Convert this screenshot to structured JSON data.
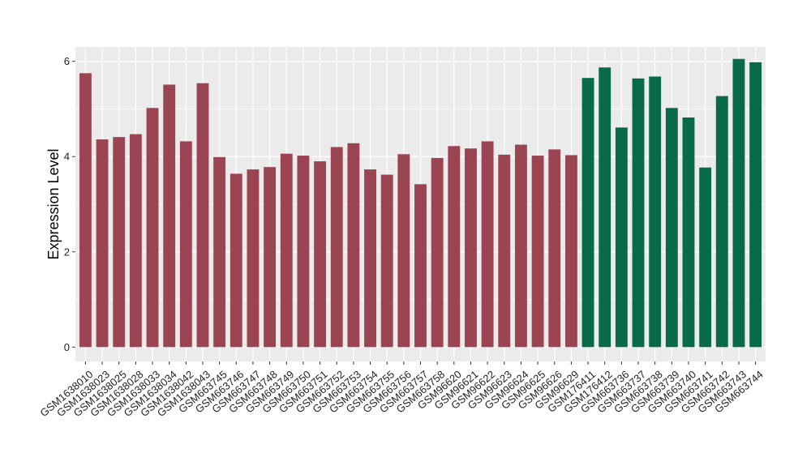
{
  "chart_data": {
    "type": "bar",
    "ylabel": "Expression Level",
    "xlabel": "",
    "ylim": [
      -0.3,
      6.3
    ],
    "yticks": [
      0,
      2,
      4,
      6
    ],
    "grid": true,
    "background": "#EBEBEB",
    "gridline_color": "#FFFFFF",
    "colors": {
      "group_1": "#9B4452",
      "group_2": "#086A46"
    },
    "categories": [
      "GSM1638010",
      "GSM1638023",
      "GSM1638025",
      "GSM1638028",
      "GSM1638033",
      "GSM1638034",
      "GSM1638042",
      "GSM1638043",
      "GSM663745",
      "GSM663746",
      "GSM663747",
      "GSM663748",
      "GSM663749",
      "GSM663750",
      "GSM663751",
      "GSM663752",
      "GSM663753",
      "GSM663754",
      "GSM663755",
      "GSM663756",
      "GSM663757",
      "GSM663758",
      "GSM96620",
      "GSM96621",
      "GSM96622",
      "GSM96623",
      "GSM96624",
      "GSM96625",
      "GSM96626",
      "GSM96629",
      "GSM176411",
      "GSM176412",
      "GSM663736",
      "GSM663737",
      "GSM663738",
      "GSM663739",
      "GSM663740",
      "GSM663741",
      "GSM663742",
      "GSM663743",
      "GSM663744"
    ],
    "values": [
      5.75,
      4.36,
      4.41,
      4.47,
      5.02,
      5.51,
      4.32,
      5.54,
      3.99,
      3.64,
      3.73,
      3.78,
      4.06,
      4.02,
      3.9,
      4.2,
      4.28,
      3.73,
      3.62,
      4.05,
      3.42,
      3.97,
      4.22,
      4.17,
      4.32,
      4.04,
      4.25,
      4.02,
      4.15,
      4.03,
      5.65,
      5.87,
      4.61,
      5.64,
      5.68,
      5.02,
      4.82,
      3.77,
      5.27,
      6.05,
      5.98
    ],
    "groups": [
      1,
      1,
      1,
      1,
      1,
      1,
      1,
      1,
      1,
      1,
      1,
      1,
      1,
      1,
      1,
      1,
      1,
      1,
      1,
      1,
      1,
      1,
      1,
      1,
      1,
      1,
      1,
      1,
      1,
      1,
      2,
      2,
      2,
      2,
      2,
      2,
      2,
      2,
      2,
      2,
      2
    ]
  }
}
